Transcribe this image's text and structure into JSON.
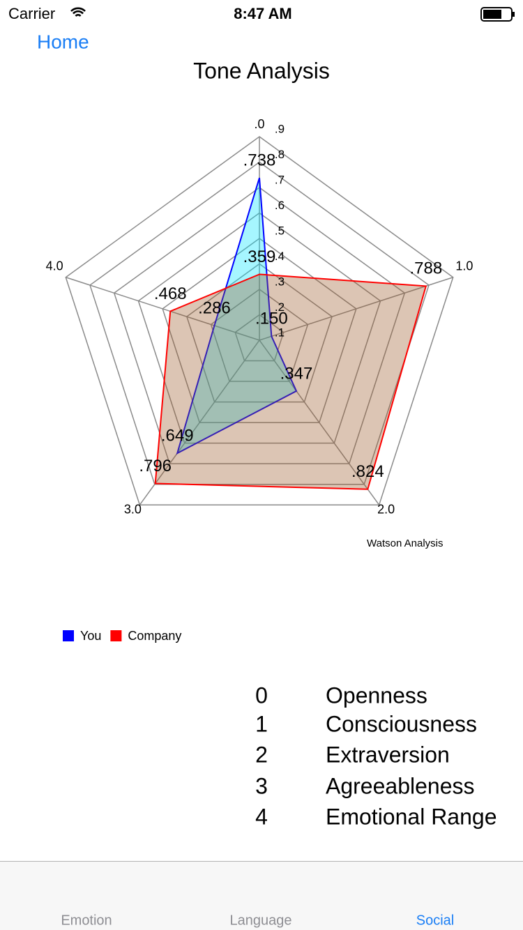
{
  "status_bar": {
    "carrier": "Carrier",
    "time": "8:47 AM"
  },
  "nav": {
    "back": "Home"
  },
  "chart_data": {
    "type": "radar",
    "title": "Tone Analysis",
    "description": "Watson Analysis",
    "categories": [
      ".0",
      "1.0",
      "2.0",
      "3.0",
      "4.0"
    ],
    "ylim": [
      0.1,
      0.9
    ],
    "yticks": [
      {
        "value": 0.1,
        "label": ".1"
      },
      {
        "value": 0.2,
        "label": ".2"
      },
      {
        "value": 0.3,
        "label": ".3"
      },
      {
        "value": 0.4,
        "label": ".4"
      },
      {
        "value": 0.5,
        "label": ".5"
      },
      {
        "value": 0.6,
        "label": ".6"
      },
      {
        "value": 0.7,
        "label": ".7"
      },
      {
        "value": 0.8,
        "label": ".8"
      },
      {
        "value": 0.9,
        "label": ".9"
      }
    ],
    "grid": true,
    "series": [
      {
        "name": "You",
        "color": "#0000ff",
        "fill": "#00e5ff",
        "values": [
          0.738,
          0.15,
          0.347,
          0.649,
          0.286
        ],
        "value_labels": [
          ".738",
          ".150",
          ".347",
          ".649",
          ".286"
        ]
      },
      {
        "name": "Company",
        "color": "#ff0000",
        "fill": "#9a5a28",
        "values": [
          0.359,
          0.788,
          0.824,
          0.796,
          0.468
        ],
        "value_labels": [
          ".359",
          ".788",
          ".824",
          ".796",
          ".468"
        ]
      }
    ]
  },
  "key": [
    [
      "0",
      "Openness"
    ],
    [
      "1",
      "Consciousness"
    ],
    [
      "2",
      "Extraversion"
    ],
    [
      "3",
      "Agreeableness"
    ],
    [
      "4",
      "Emotional Range"
    ]
  ],
  "tab_bar": {
    "tabs": [
      "Emotion",
      "Language",
      "Social"
    ],
    "selected": 2
  }
}
